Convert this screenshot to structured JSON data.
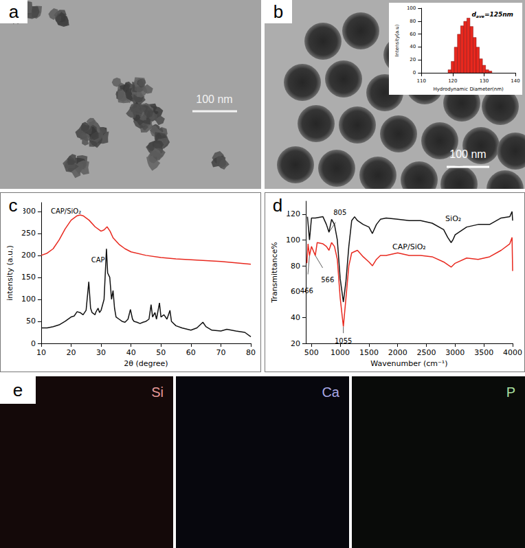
{
  "figure": {
    "panel_labels": [
      "a",
      "b",
      "c",
      "d",
      "e"
    ],
    "scale_bar": "100 nm",
    "eds_maps": [
      {
        "label": "Si",
        "color": "#e79a9a"
      },
      {
        "label": "Ca",
        "color": "#a9a9e6"
      },
      {
        "label": "P",
        "color": "#a9e0a0"
      }
    ]
  },
  "chart_data": [
    {
      "type": "bar",
      "xlabel": "Hydrodynamic Diameter(nm)",
      "ylabel": "Intensity(a.u)",
      "annotation": {
        "main": "d",
        "sub": "ave",
        "rest": "=125nm"
      },
      "x": [
        119,
        120,
        121,
        122,
        123,
        124,
        125,
        126,
        127,
        128,
        129,
        130,
        131,
        132
      ],
      "values": [
        5,
        18,
        40,
        60,
        73,
        80,
        85,
        72,
        55,
        40,
        22,
        12,
        5,
        3
      ],
      "color": "#e8281e",
      "xlim": [
        110,
        140
      ],
      "xticks": [
        110,
        120,
        130,
        140
      ],
      "ylim": [
        0,
        100
      ],
      "yticks": [
        0,
        20,
        40,
        60,
        80,
        100
      ]
    },
    {
      "type": "line",
      "xlabel": "2θ (degree)",
      "ylabel": "intensity (a.u.)",
      "xlim": [
        10,
        80
      ],
      "xticks": [
        10,
        20,
        30,
        40,
        50,
        60,
        70,
        80
      ],
      "ylim": [
        0,
        320
      ],
      "yticks": [
        0,
        50,
        100,
        150,
        200,
        250,
        300
      ],
      "series": [
        {
          "name": "CAP/SiO₂",
          "color": "#e8281e",
          "x": [
            10,
            12,
            14,
            16,
            18,
            20,
            22,
            23,
            24,
            26,
            28,
            30,
            31,
            32,
            33,
            34,
            36,
            38,
            40,
            45,
            50,
            55,
            60,
            65,
            70,
            75,
            80
          ],
          "values": [
            200,
            205,
            215,
            235,
            260,
            280,
            290,
            292,
            290,
            280,
            265,
            255,
            258,
            265,
            255,
            240,
            225,
            215,
            208,
            200,
            195,
            192,
            190,
            188,
            186,
            183,
            180
          ]
        },
        {
          "name": "CAP",
          "color": "#111111",
          "x": [
            10,
            12,
            14,
            16,
            18,
            20,
            21,
            22,
            23,
            24,
            25,
            25.9,
            26.5,
            27,
            28,
            28.2,
            29,
            29.5,
            30,
            31,
            31.8,
            32.2,
            32.9,
            33.5,
            34,
            34.5,
            35,
            36,
            37,
            38,
            39,
            39.8,
            40.5,
            41,
            42,
            43,
            44,
            45,
            46,
            46.7,
            47.2,
            48,
            48.5,
            49.5,
            50,
            51,
            52,
            53,
            53.5,
            55,
            57,
            60,
            62,
            64,
            65,
            67,
            70,
            72,
            75,
            78,
            80
          ],
          "values": [
            35,
            35,
            38,
            42,
            50,
            60,
            62,
            72,
            70,
            65,
            75,
            140,
            80,
            70,
            65,
            70,
            80,
            70,
            75,
            100,
            215,
            160,
            150,
            100,
            120,
            80,
            60,
            55,
            50,
            48,
            55,
            77,
            55,
            50,
            48,
            45,
            48,
            50,
            55,
            88,
            60,
            70,
            55,
            92,
            60,
            65,
            55,
            75,
            50,
            40,
            35,
            30,
            35,
            48,
            38,
            30,
            28,
            32,
            28,
            25,
            15
          ]
        }
      ]
    },
    {
      "type": "line",
      "xlabel": "Wavenumber (cm⁻¹)",
      "ylabel": "Transmittance%",
      "xlim": [
        400,
        4000
      ],
      "xticks": [
        500,
        1000,
        1500,
        2000,
        2500,
        3000,
        3500,
        4000
      ],
      "ylim": [
        20,
        130
      ],
      "yticks": [
        20,
        40,
        60,
        80,
        100,
        120
      ],
      "annotations": [
        "805",
        "566",
        "466",
        "1055"
      ],
      "series": [
        {
          "name": "SiO₂",
          "color": "#111111",
          "x": [
            430,
            466,
            500,
            566,
            700,
            760,
            805,
            850,
            900,
            950,
            1000,
            1055,
            1100,
            1150,
            1200,
            1250,
            1300,
            1400,
            1500,
            1560,
            1630,
            1700,
            1800,
            2000,
            2200,
            2400,
            2600,
            2800,
            2870,
            2930,
            2960,
            3000,
            3200,
            3400,
            3600,
            3800,
            3950,
            3990,
            4000
          ],
          "values": [
            118,
            100,
            117,
            117,
            118,
            112,
            106,
            116,
            112,
            100,
            70,
            52,
            68,
            95,
            115,
            118,
            115,
            112,
            110,
            105,
            112,
            116,
            117,
            116,
            115,
            115,
            113,
            108,
            102,
            98,
            100,
            104,
            110,
            112,
            112,
            117,
            118,
            122,
            115
          ]
        },
        {
          "name": "CAP/SiO₂",
          "color": "#e8281e",
          "x": [
            420,
            440,
            466,
            500,
            566,
            600,
            700,
            760,
            805,
            850,
            900,
            950,
            1000,
            1055,
            1100,
            1150,
            1200,
            1300,
            1400,
            1500,
            1560,
            1630,
            1700,
            1800,
            2000,
            2200,
            2400,
            2600,
            2800,
            2930,
            3000,
            3200,
            3400,
            3600,
            3800,
            3950,
            3990,
            4000
          ],
          "values": [
            82,
            97,
            88,
            95,
            88,
            98,
            97,
            95,
            92,
            98,
            95,
            85,
            55,
            33,
            55,
            80,
            90,
            92,
            87,
            83,
            80,
            85,
            88,
            88,
            90,
            88,
            88,
            87,
            83,
            79,
            82,
            86,
            85,
            87,
            92,
            97,
            102,
            76
          ]
        }
      ]
    }
  ]
}
